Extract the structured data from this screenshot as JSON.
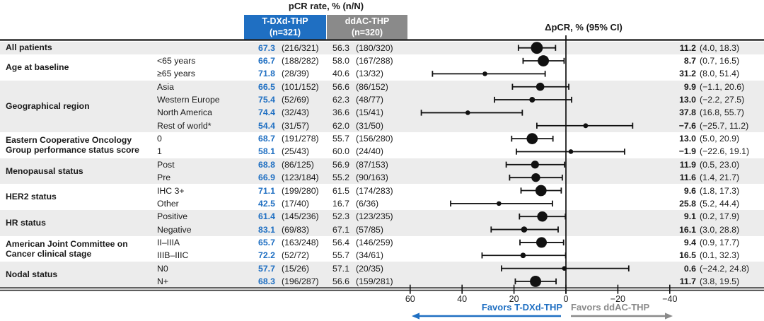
{
  "header": {
    "pcr_title": "pCR rate, % (n/N)",
    "delta_title": "ΔpCR, % (95% CI)"
  },
  "columns": {
    "tdxd": {
      "name": "T-DXd-THP",
      "n_label": "(n=321)",
      "color": "#1f6fc2"
    },
    "ddac": {
      "name": "ddAC-THP",
      "n_label": "(n=320)",
      "color": "#8a8a8a"
    }
  },
  "footer": {
    "favors_left": "Favors T-DXd-THP",
    "favors_right": "Favors ddAC-THP"
  },
  "colors": {
    "blue": "#1f6fc2",
    "gray": "#8a8a8a",
    "stripe": "#ececec",
    "ink": "#1a1a1a"
  },
  "chart_data": {
    "type": "forest",
    "title": "pCR rate, % (n/N)",
    "xlabel": "ΔpCR, % (95% CI)",
    "axis": {
      "ticks": [
        60,
        40,
        20,
        0,
        -20,
        -40
      ],
      "tick_labels": [
        "60",
        "40",
        "20",
        "0",
        "−20",
        "−40"
      ],
      "reversed": true,
      "xlim": [
        64,
        -44
      ],
      "grid": false
    },
    "groups": [
      {
        "label": [
          "All patients"
        ],
        "rows": [
          {
            "subgroup": "",
            "tdxd_pct": "67.3",
            "tdxd_frac": "(216/321)",
            "ddac_pct": "56.3",
            "ddac_frac": "(180/320)",
            "delta": 11.2,
            "ci": [
              4.0,
              18.3
            ],
            "delta_label": "11.2",
            "ci_label": "(4.0, 18.3)",
            "weight": 641
          }
        ]
      },
      {
        "label": [
          "Age at baseline"
        ],
        "rows": [
          {
            "subgroup": "<65 years",
            "tdxd_pct": "66.7",
            "tdxd_frac": "(188/282)",
            "ddac_pct": "58.0",
            "ddac_frac": "(167/288)",
            "delta": 8.7,
            "ci": [
              0.7,
              16.5
            ],
            "delta_label": "8.7",
            "ci_label": "(0.7, 16.5)",
            "weight": 570
          },
          {
            "subgroup": "≥65 years",
            "tdxd_pct": "71.8",
            "tdxd_frac": "(28/39)",
            "ddac_pct": "40.6",
            "ddac_frac": "(13/32)",
            "delta": 31.2,
            "ci": [
              8.0,
              51.4
            ],
            "delta_label": "31.2",
            "ci_label": "(8.0, 51.4)",
            "weight": 71
          }
        ]
      },
      {
        "label": [
          "Geographical region"
        ],
        "rows": [
          {
            "subgroup": "Asia",
            "tdxd_pct": "66.5",
            "tdxd_frac": "(101/152)",
            "ddac_pct": "56.6",
            "ddac_frac": "(86/152)",
            "delta": 9.9,
            "ci": [
              -1.1,
              20.6
            ],
            "delta_label": "9.9",
            "ci_label": "(−1.1, 20.6)",
            "weight": 304
          },
          {
            "subgroup": "Western Europe",
            "tdxd_pct": "75.4",
            "tdxd_frac": "(52/69)",
            "ddac_pct": "62.3",
            "ddac_frac": "(48/77)",
            "delta": 13.0,
            "ci": [
              -2.2,
              27.5
            ],
            "delta_label": "13.0",
            "ci_label": "(−2.2, 27.5)",
            "weight": 146
          },
          {
            "subgroup": "North America",
            "tdxd_pct": "74.4",
            "tdxd_frac": "(32/43)",
            "ddac_pct": "36.6",
            "ddac_frac": "(15/41)",
            "delta": 37.8,
            "ci": [
              16.8,
              55.7
            ],
            "delta_label": "37.8",
            "ci_label": "(16.8, 55.7)",
            "weight": 84
          },
          {
            "subgroup": "Rest of world*",
            "tdxd_pct": "54.4",
            "tdxd_frac": "(31/57)",
            "ddac_pct": "62.0",
            "ddac_frac": "(31/50)",
            "delta": -7.6,
            "ci": [
              -25.7,
              11.2
            ],
            "delta_label": "−7.6",
            "ci_label": "(−25.7, 11.2)",
            "weight": 107
          }
        ]
      },
      {
        "label": [
          "Eastern Cooperative Oncology",
          "Group performance status score"
        ],
        "rows": [
          {
            "subgroup": "0",
            "tdxd_pct": "68.7",
            "tdxd_frac": "(191/278)",
            "ddac_pct": "55.7",
            "ddac_frac": "(156/280)",
            "delta": 13.0,
            "ci": [
              5.0,
              20.9
            ],
            "delta_label": "13.0",
            "ci_label": "(5.0, 20.9)",
            "weight": 558
          },
          {
            "subgroup": "1",
            "tdxd_pct": "58.1",
            "tdxd_frac": "(25/43)",
            "ddac_pct": "60.0",
            "ddac_frac": "(24/40)",
            "delta": -1.9,
            "ci": [
              -22.6,
              19.1
            ],
            "delta_label": "−1.9",
            "ci_label": "(−22.6, 19.1)",
            "weight": 83
          }
        ]
      },
      {
        "label": [
          "Menopausal status"
        ],
        "rows": [
          {
            "subgroup": "Post",
            "tdxd_pct": "68.8",
            "tdxd_frac": "(86/125)",
            "ddac_pct": "56.9",
            "ddac_frac": "(87/153)",
            "delta": 11.9,
            "ci": [
              0.5,
              23.0
            ],
            "delta_label": "11.9",
            "ci_label": "(0.5, 23.0)",
            "weight": 278
          },
          {
            "subgroup": "Pre",
            "tdxd_pct": "66.9",
            "tdxd_frac": "(123/184)",
            "ddac_pct": "55.2",
            "ddac_frac": "(90/163)",
            "delta": 11.6,
            "ci": [
              1.4,
              21.7
            ],
            "delta_label": "11.6",
            "ci_label": "(1.4, 21.7)",
            "weight": 347
          }
        ]
      },
      {
        "label": [
          "HER2 status"
        ],
        "rows": [
          {
            "subgroup": "IHC 3+",
            "tdxd_pct": "71.1",
            "tdxd_frac": "(199/280)",
            "ddac_pct": "61.5",
            "ddac_frac": "(174/283)",
            "delta": 9.6,
            "ci": [
              1.8,
              17.3
            ],
            "delta_label": "9.6",
            "ci_label": "(1.8, 17.3)",
            "weight": 563
          },
          {
            "subgroup": "Other",
            "tdxd_pct": "42.5",
            "tdxd_frac": "(17/40)",
            "ddac_pct": "16.7",
            "ddac_frac": "(6/36)",
            "delta": 25.8,
            "ci": [
              5.2,
              44.4
            ],
            "delta_label": "25.8",
            "ci_label": "(5.2, 44.4)",
            "weight": 76
          }
        ]
      },
      {
        "label": [
          "HR status"
        ],
        "rows": [
          {
            "subgroup": "Positive",
            "tdxd_pct": "61.4",
            "tdxd_frac": "(145/236)",
            "ddac_pct": "52.3",
            "ddac_frac": "(123/235)",
            "delta": 9.1,
            "ci": [
              0.2,
              17.9
            ],
            "delta_label": "9.1",
            "ci_label": "(0.2, 17.9)",
            "weight": 471
          },
          {
            "subgroup": "Negative",
            "tdxd_pct": "83.1",
            "tdxd_frac": "(69/83)",
            "ddac_pct": "67.1",
            "ddac_frac": "(57/85)",
            "delta": 16.1,
            "ci": [
              3.0,
              28.8
            ],
            "delta_label": "16.1",
            "ci_label": "(3.0, 28.8)",
            "weight": 168
          }
        ]
      },
      {
        "label": [
          "American Joint Committee on",
          "Cancer clinical stage"
        ],
        "rows": [
          {
            "subgroup": "II–IIIA",
            "tdxd_pct": "65.7",
            "tdxd_frac": "(163/248)",
            "ddac_pct": "56.4",
            "ddac_frac": "(146/259)",
            "delta": 9.4,
            "ci": [
              0.9,
              17.7
            ],
            "delta_label": "9.4",
            "ci_label": "(0.9, 17.7)",
            "weight": 507
          },
          {
            "subgroup": "IIIB–IIIC",
            "tdxd_pct": "72.2",
            "tdxd_frac": "(52/72)",
            "ddac_pct": "55.7",
            "ddac_frac": "(34/61)",
            "delta": 16.5,
            "ci": [
              0.1,
              32.3
            ],
            "delta_label": "16.5",
            "ci_label": "(0.1, 32.3)",
            "weight": 133
          }
        ]
      },
      {
        "label": [
          "Nodal status"
        ],
        "rows": [
          {
            "subgroup": "N0",
            "tdxd_pct": "57.7",
            "tdxd_frac": "(15/26)",
            "ddac_pct": "57.1",
            "ddac_frac": "(20/35)",
            "delta": 0.6,
            "ci": [
              -24.2,
              24.8
            ],
            "delta_label": "0.6",
            "ci_label": "(−24.2, 24.8)",
            "weight": 61
          },
          {
            "subgroup": "N+",
            "tdxd_pct": "68.3",
            "tdxd_frac": "(196/287)",
            "ddac_pct": "56.6",
            "ddac_frac": "(159/281)",
            "delta": 11.7,
            "ci": [
              3.8,
              19.5
            ],
            "delta_label": "11.7",
            "ci_label": "(3.8, 19.5)",
            "weight": 568
          }
        ]
      }
    ]
  }
}
